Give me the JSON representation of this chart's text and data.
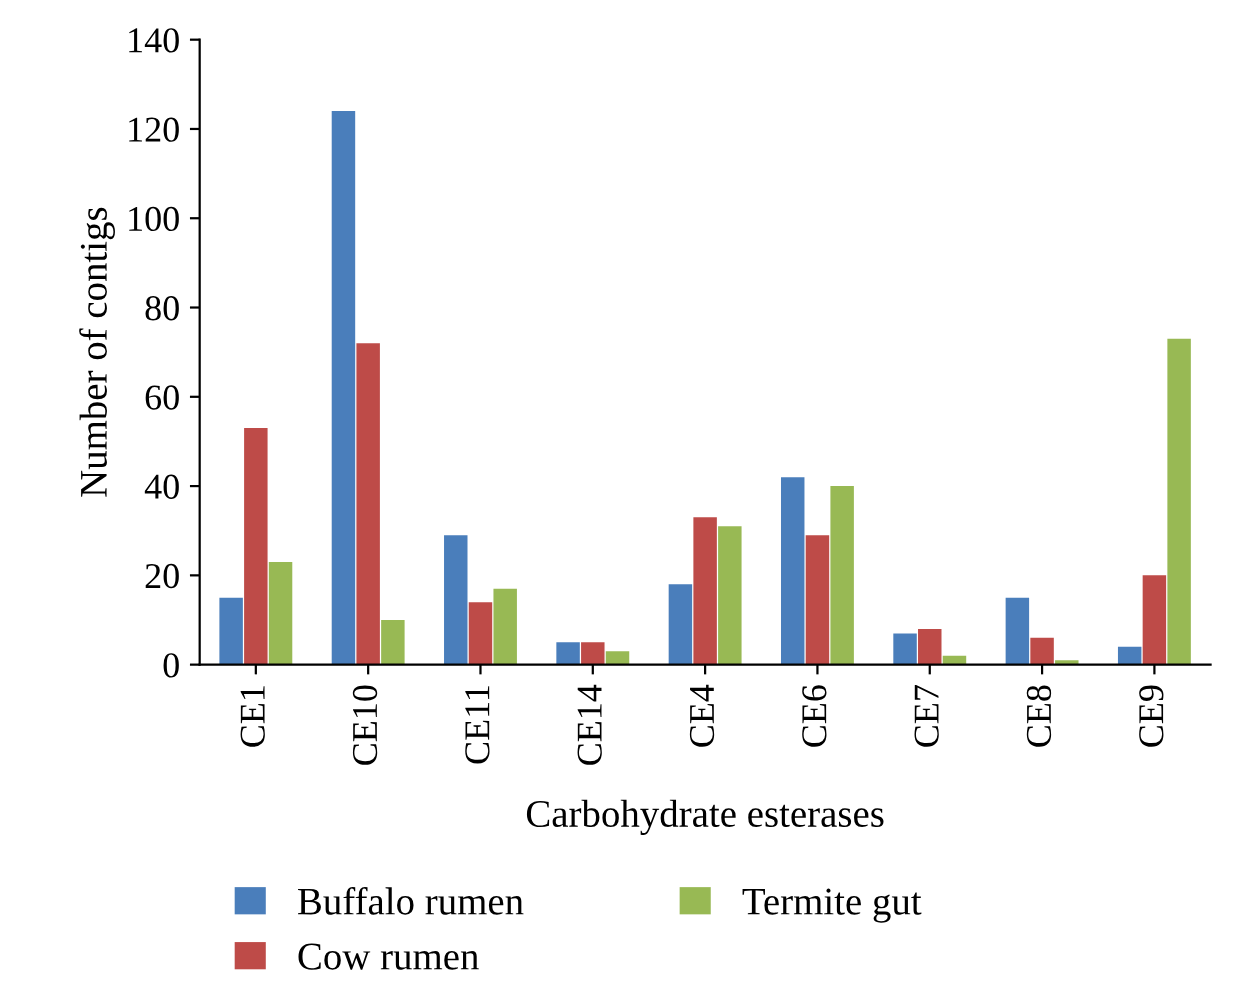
{
  "chart_data": {
    "type": "bar",
    "xlabel": "Carbohydrate esterases",
    "ylabel": "Number of contigs",
    "categories": [
      "CE1",
      "CE10",
      "CE11",
      "CE14",
      "CE4",
      "CE6",
      "CE7",
      "CE8",
      "CE9"
    ],
    "series": [
      {
        "name": "Buffalo rumen",
        "color": "#4a7ebb",
        "values": [
          15,
          124,
          29,
          5,
          18,
          42,
          7,
          15,
          4
        ]
      },
      {
        "name": "Cow rumen",
        "color": "#be4b48",
        "values": [
          53,
          72,
          14,
          5,
          33,
          29,
          8,
          6,
          20
        ]
      },
      {
        "name": "Termite gut",
        "color": "#98b954",
        "values": [
          23,
          10,
          17,
          3,
          31,
          40,
          2,
          1,
          73
        ]
      }
    ],
    "ylim": [
      0,
      140
    ],
    "yticks": [
      0,
      20,
      40,
      60,
      80,
      100,
      120,
      140
    ],
    "grid": false,
    "legend": "bottom"
  }
}
